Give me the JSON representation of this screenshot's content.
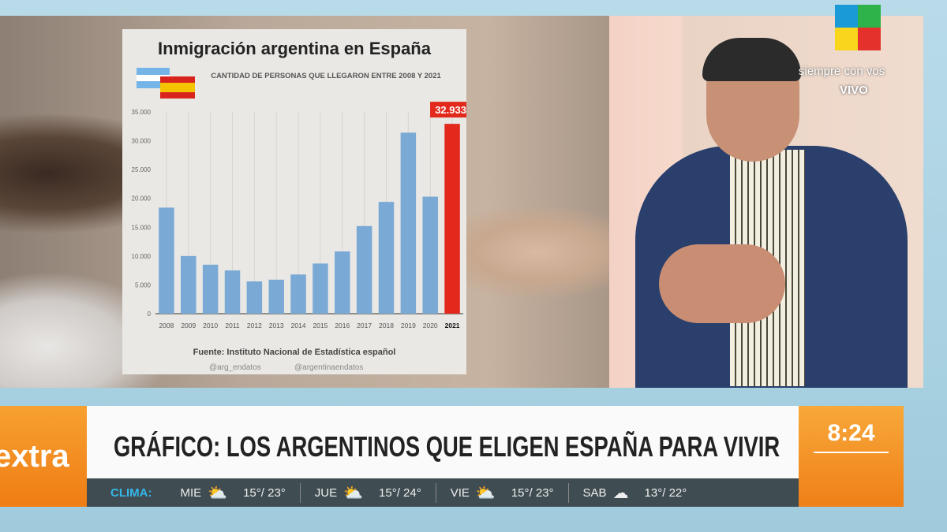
{
  "channel": {
    "slogan": "siempre con vos",
    "live": "VIVO",
    "logo_colors": [
      "#e4312b",
      "#1a9ad6",
      "#2db34a",
      "#f9d51e"
    ]
  },
  "chart_data": {
    "type": "bar",
    "title": "Inmigración argentina en España",
    "subtitle": "CANTIDAD DE PERSONAS QUE LLEGARON ENTRE 2008 Y 2021",
    "categories": [
      "2008",
      "2009",
      "2010",
      "2011",
      "2012",
      "2013",
      "2014",
      "2015",
      "2016",
      "2017",
      "2018",
      "2019",
      "2020",
      "2021"
    ],
    "values": [
      18400,
      10000,
      8500,
      7500,
      5600,
      5900,
      6800,
      8700,
      10800,
      15200,
      19400,
      31400,
      20300,
      32933
    ],
    "highlight": {
      "category": "2021",
      "label": "32.933",
      "color": "#e2291c"
    },
    "bar_color": "#7aa9d6",
    "yticks": [
      "0",
      "5.000",
      "10.000",
      "15.000",
      "20.000",
      "25.000",
      "30.000",
      "35.000"
    ],
    "ylim": [
      0,
      35000
    ],
    "grid": "vertical",
    "source": "Fuente: Instituto Nacional de Estadística español",
    "twitter": "@arg_endatos",
    "instagram": "@argentinaendatos"
  },
  "lower_third": {
    "program": "extra",
    "headline": "GRÁFICO: LOS ARGENTINOS QUE ELIGEN ESPAÑA PARA VIVIR",
    "time": "8:24",
    "weather_label": "CLIMA:",
    "forecast": [
      {
        "day": "MIE",
        "icon": "rain-sun-icon",
        "temp": "15°/ 23°"
      },
      {
        "day": "JUE",
        "icon": "rain-sun-icon",
        "temp": "15°/ 24°"
      },
      {
        "day": "VIE",
        "icon": "cloud-sun-icon",
        "temp": "15°/ 23°"
      },
      {
        "day": "SAB",
        "icon": "rain-cloud-icon",
        "temp": "13°/ 22°"
      }
    ]
  }
}
